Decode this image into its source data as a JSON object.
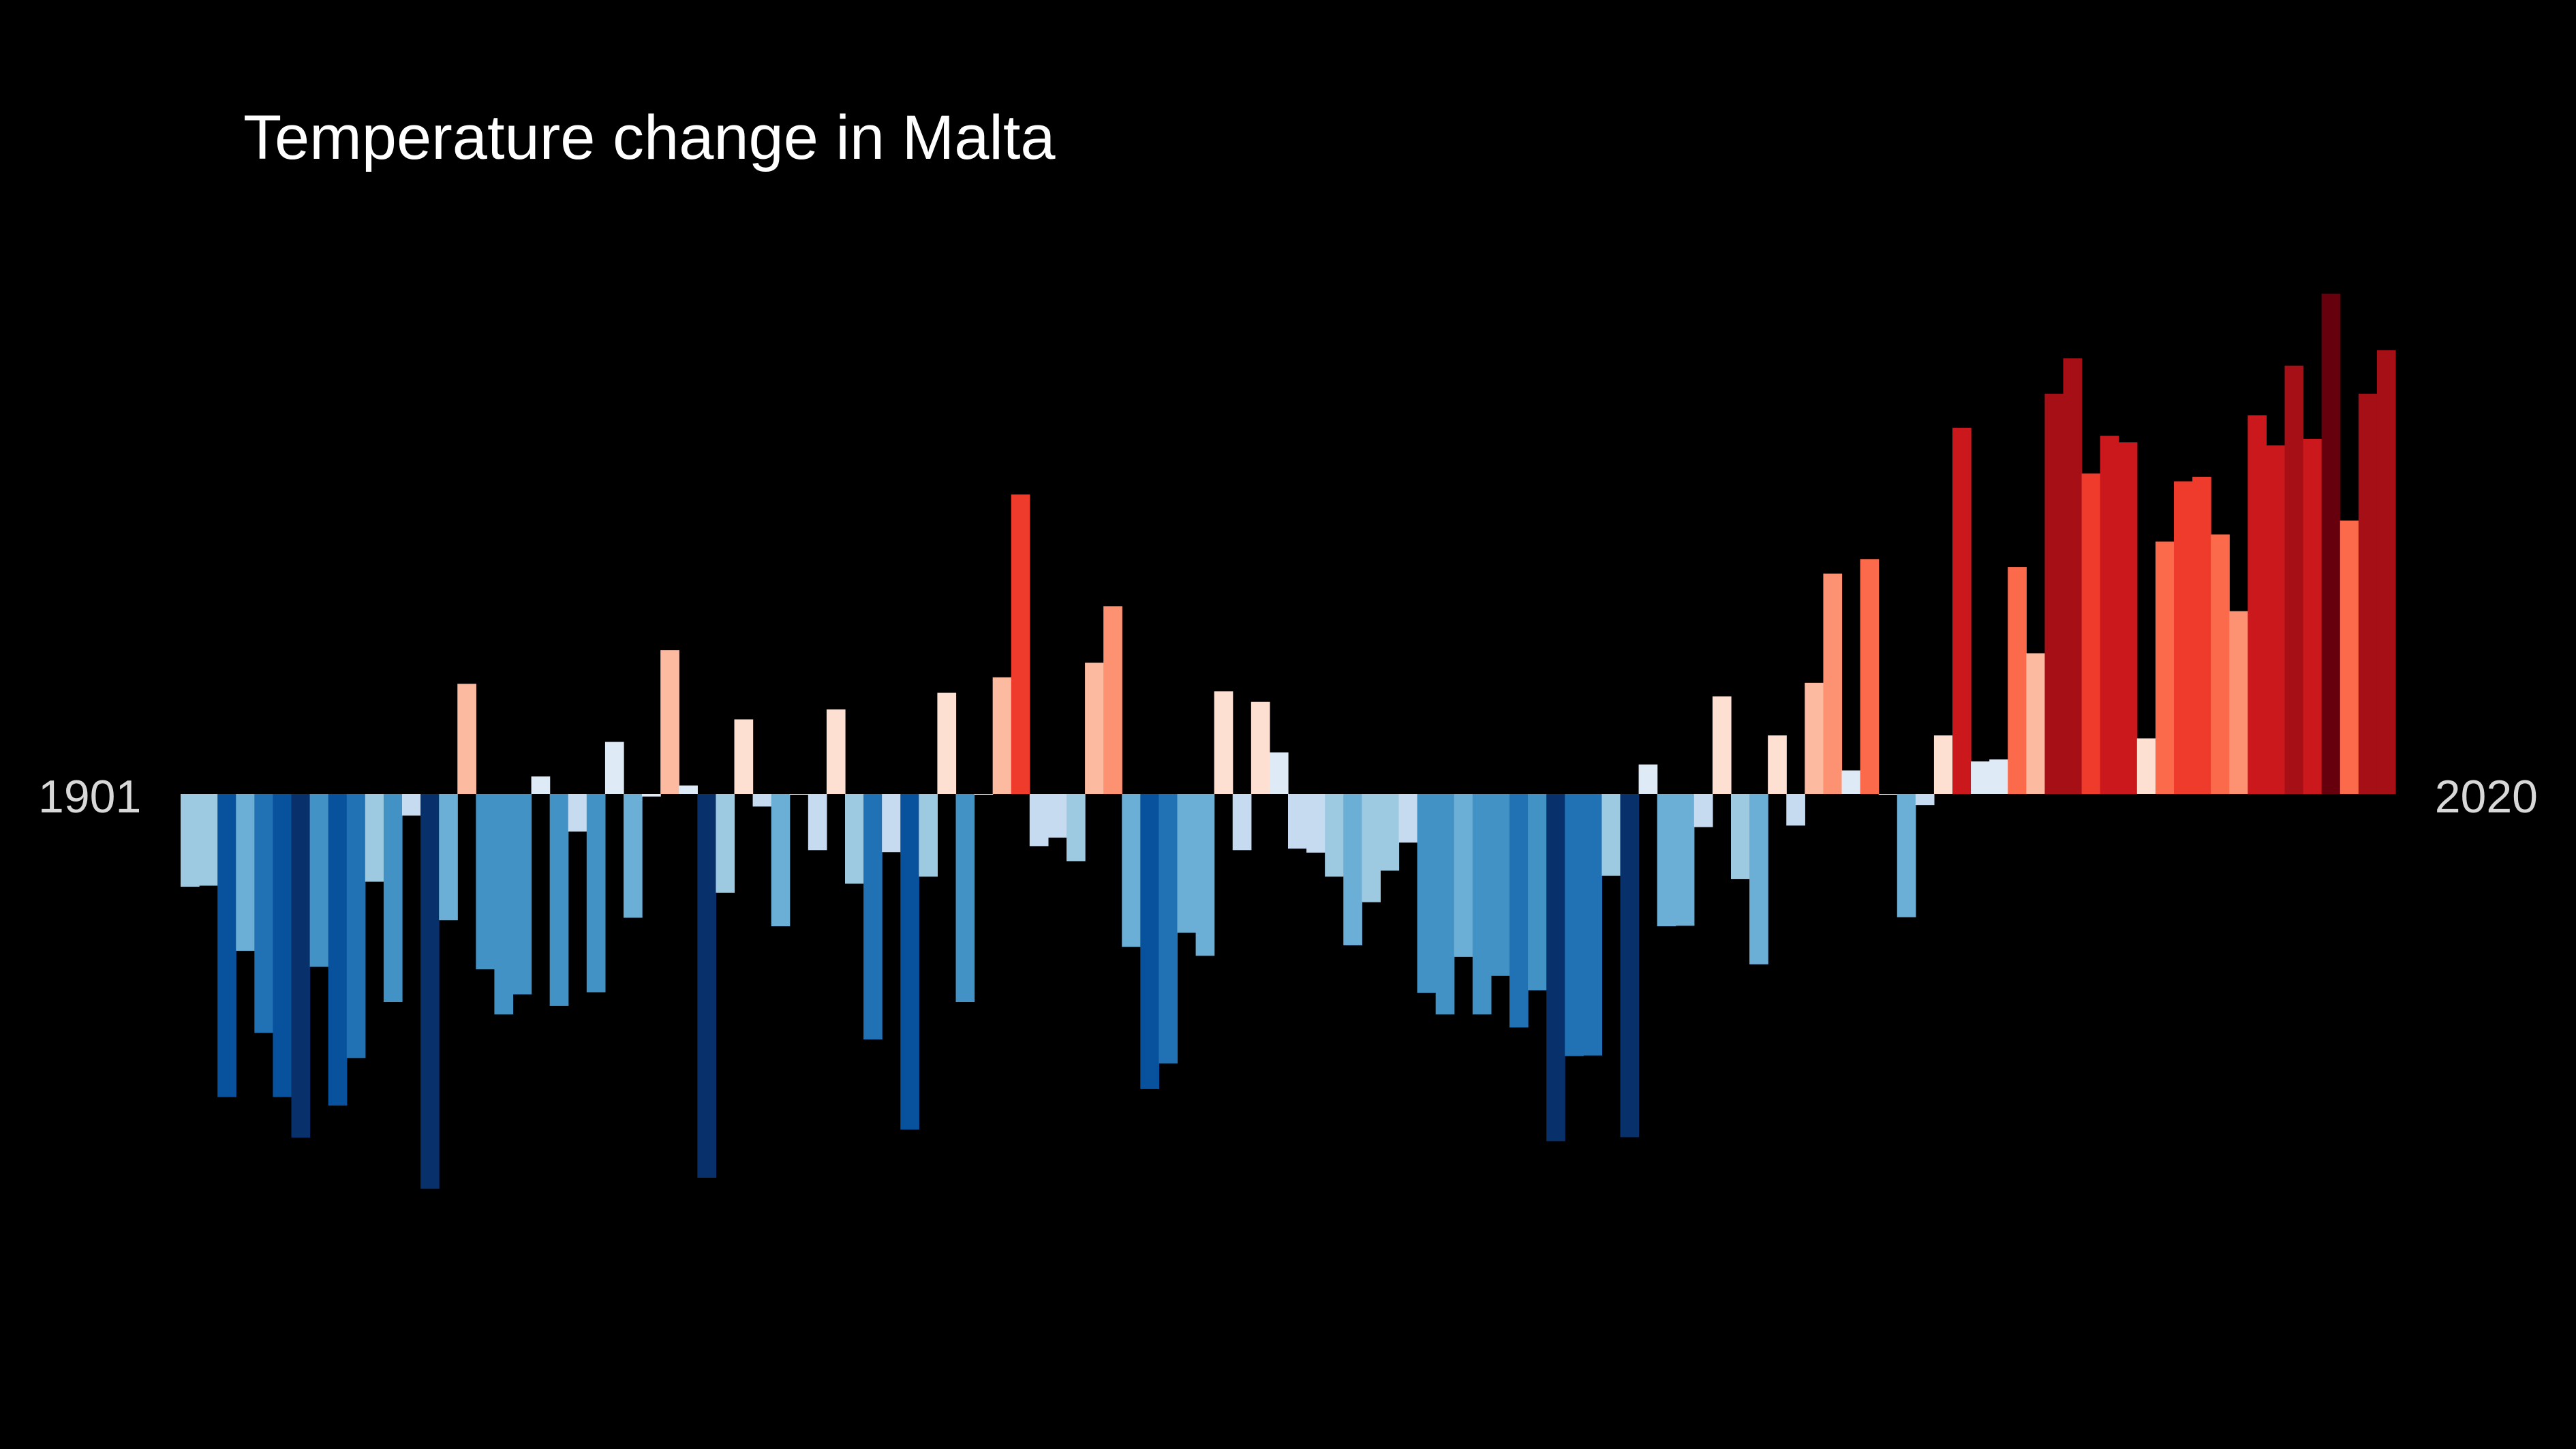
{
  "title": "Temperature change in Malta",
  "start_year_label": "1901",
  "end_year_label": "2020",
  "chart_data": {
    "type": "bar",
    "title": "Temperature change in Malta",
    "x_start": 1901,
    "x_end": 2020,
    "ylim": [
      -0.79,
      1.0
    ],
    "grid": false,
    "legend": "none",
    "values": [
      -0.185,
      -0.183,
      -0.605,
      -0.313,
      -0.477,
      -0.605,
      -0.686,
      -0.345,
      -0.622,
      -0.527,
      -0.175,
      -0.415,
      -0.043,
      -0.788,
      -0.252,
      0.22,
      -0.35,
      -0.44,
      -0.4,
      0.035,
      -0.423,
      -0.075,
      -0.396,
      0.104,
      -0.247,
      -0.005,
      0.287,
      0.017,
      -0.766,
      -0.197,
      0.149,
      -0.025,
      -0.264,
      0.0,
      -0.112,
      0.169,
      -0.179,
      -0.49,
      -0.116,
      -0.67,
      -0.165,
      0.202,
      -0.415,
      0.0,
      0.233,
      0.598,
      -0.104,
      -0.087,
      -0.134,
      0.262,
      0.375,
      -0.305,
      -0.589,
      -0.538,
      -0.277,
      -0.323,
      0.205,
      -0.112,
      0.184,
      0.083,
      -0.109,
      -0.117,
      -0.165,
      -0.302,
      -0.216,
      -0.153,
      -0.097,
      -0.397,
      -0.44,
      -0.325,
      -0.44,
      -0.363,
      -0.466,
      -0.392,
      -0.693,
      -0.523,
      -0.522,
      -0.163,
      -0.685,
      0.059,
      -0.264,
      -0.263,
      -0.066,
      0.195,
      -0.17,
      -0.34,
      0.117,
      -0.063,
      0.222,
      0.44,
      0.047,
      0.469,
      0.0,
      -0.246,
      -0.022,
      0.117,
      0.731,
      0.065,
      0.069,
      0.453,
      0.281,
      0.799,
      0.87,
      0.64,
      0.715,
      0.702,
      0.111,
      0.504,
      0.624,
      0.633,
      0.518,
      0.365,
      0.756,
      0.696,
      0.855,
      0.709,
      0.999,
      0.546,
      0.799,
      0.886
    ],
    "color_scale": [
      "#08306b",
      "#08519c",
      "#2171b5",
      "#4292c6",
      "#6baed6",
      "#9ecae1",
      "#c6dbef",
      "#deebf7",
      "#fee0d2",
      "#fcbba1",
      "#fc9272",
      "#fb6a4a",
      "#ef3b2c",
      "#cb181d",
      "#a50f15",
      "#67000d"
    ]
  }
}
